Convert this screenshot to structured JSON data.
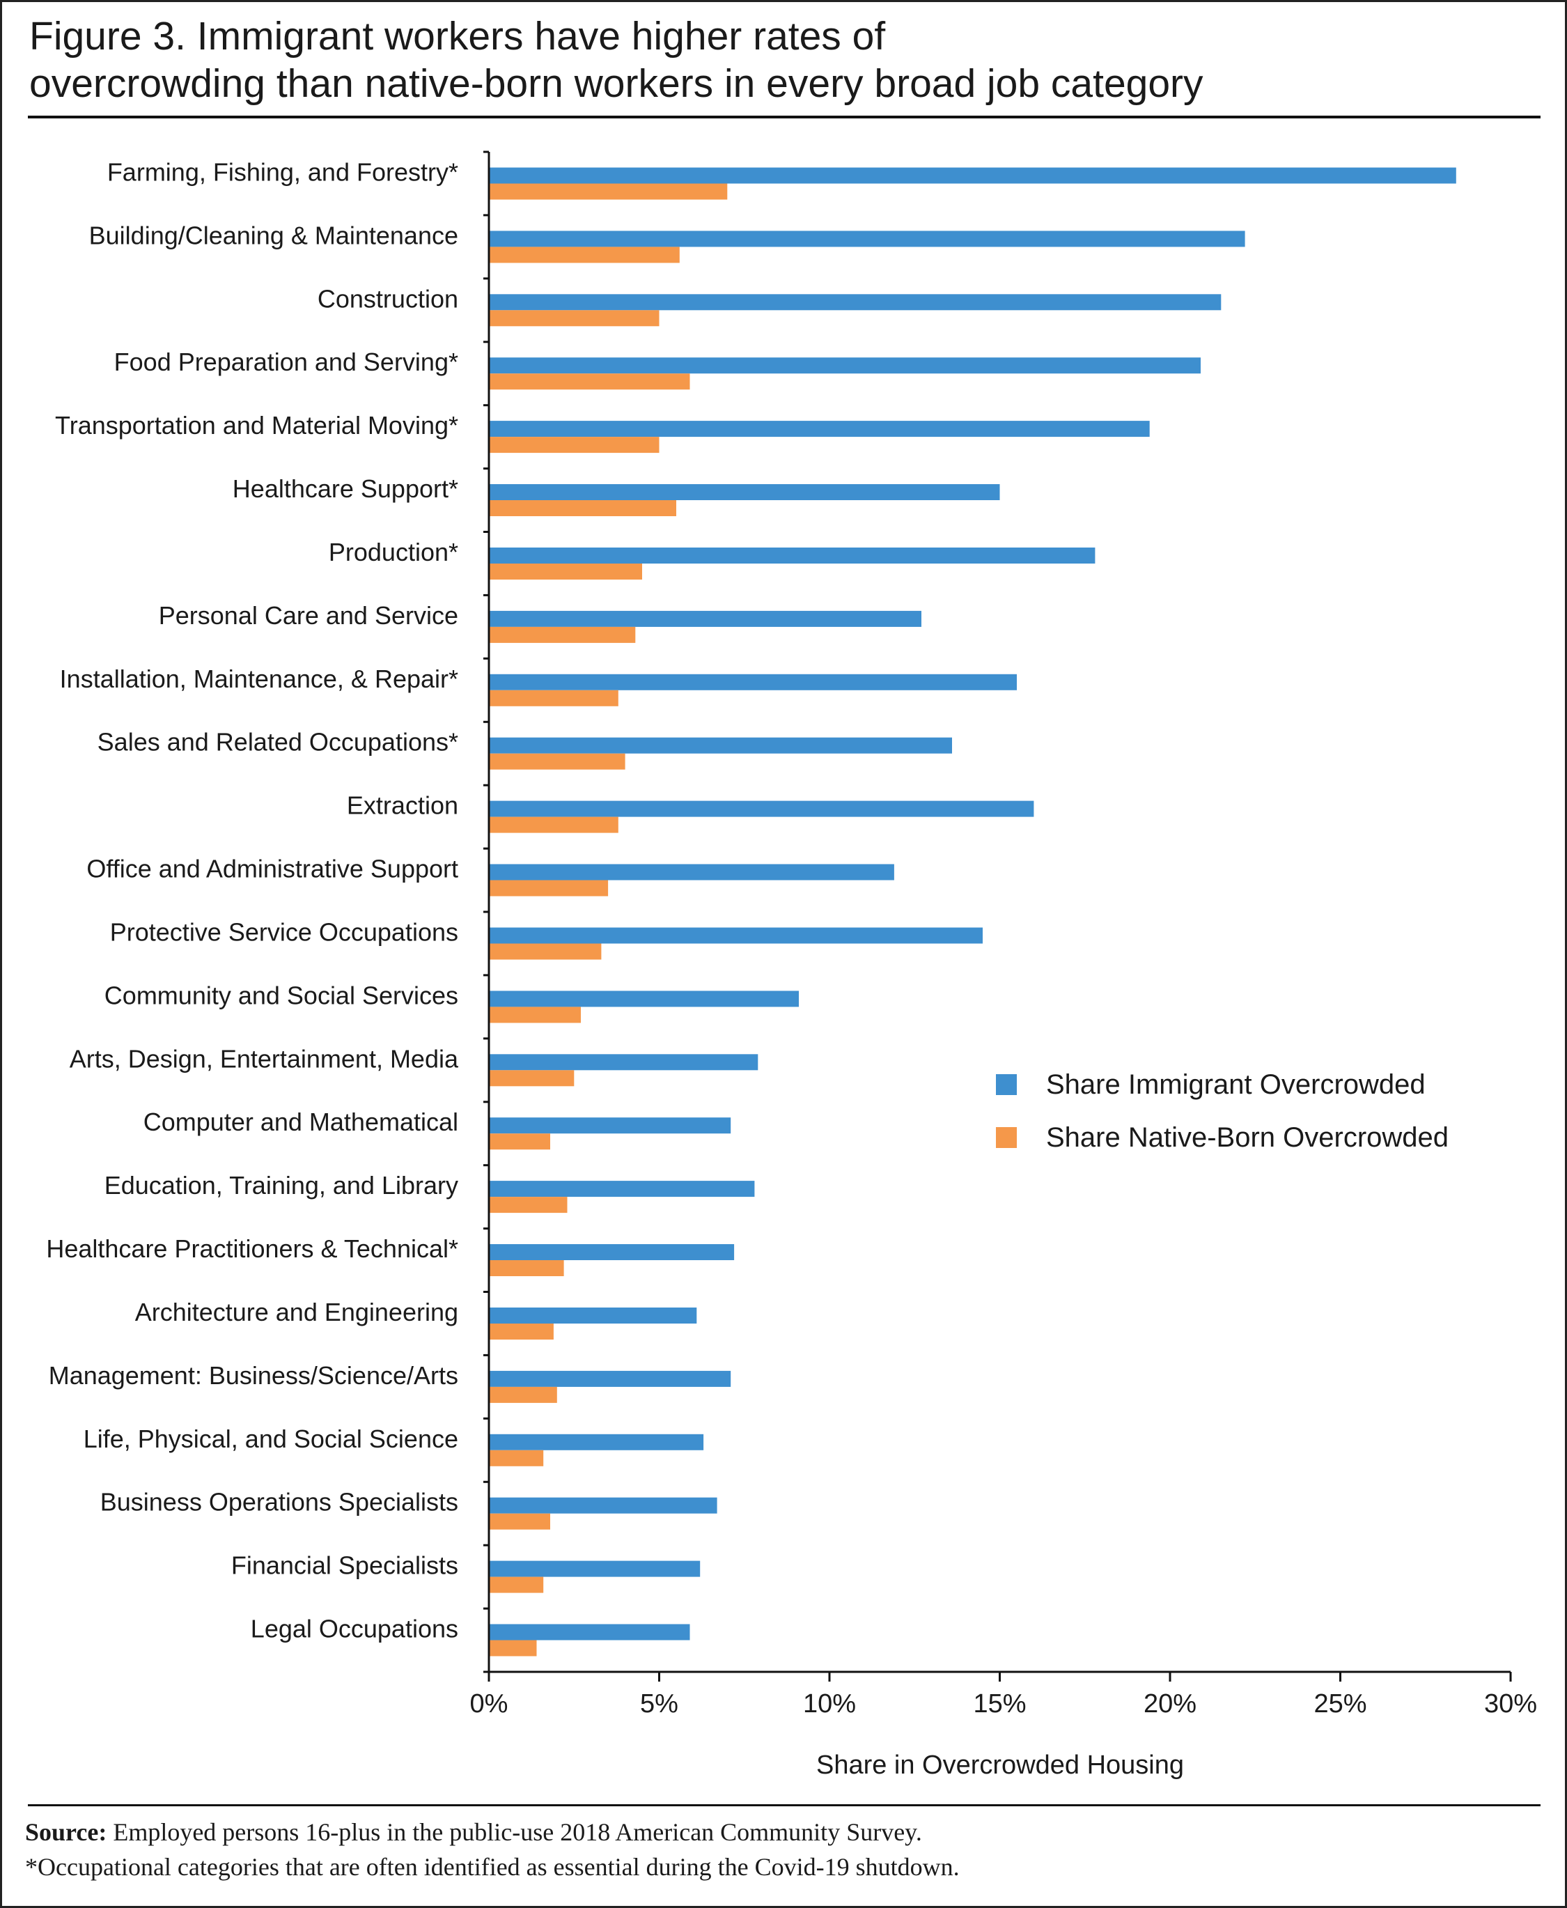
{
  "title_line1": "Figure 3. Immigrant workers have higher rates of",
  "title_line2": "overcrowding than native-born workers in every broad job category",
  "notes": {
    "source_label": "Source:",
    "source_text": "Employed persons 16-plus in the public-use 2018 American Community Survey.",
    "footnote": "*Occupational categories that are often identified as essential during the Covid-19 shutdown."
  },
  "chart_data": {
    "type": "bar",
    "orientation": "horizontal",
    "title": "Figure 3. Immigrant workers have higher rates of overcrowding than native-born workers in every broad job category",
    "xlabel": "Share in Overcrowded Housing",
    "ylabel": "",
    "xlim": [
      0,
      30
    ],
    "x_ticks": [
      0,
      5,
      10,
      15,
      20,
      25,
      30
    ],
    "x_tick_labels": [
      "0%",
      "5%",
      "10%",
      "15%",
      "20%",
      "25%",
      "30%"
    ],
    "grid": false,
    "legend_position": "center-right",
    "categories": [
      "Farming, Fishing, and Forestry*",
      "Building/Cleaning & Maintenance",
      "Construction",
      "Food Preparation and Serving*",
      "Transportation and Material Moving*",
      "Healthcare Support*",
      "Production*",
      "Personal Care and Service",
      "Installation, Maintenance, & Repair*",
      "Sales and Related Occupations*",
      "Extraction",
      "Office and Administrative Support",
      "Protective Service Occupations",
      "Community and Social Services",
      "Arts, Design, Entertainment, Media",
      "Computer and Mathematical",
      "Education, Training, and Library",
      "Healthcare Practitioners & Technical*",
      "Architecture and Engineering",
      "Management: Business/Science/Arts",
      "Life, Physical, and Social Science",
      "Business Operations Specialists",
      "Financial Specialists",
      "Legal Occupations"
    ],
    "series": [
      {
        "name": "Share Immigrant Overcrowded",
        "color": "#3e8fcf",
        "values": [
          28.4,
          22.2,
          21.5,
          20.9,
          19.4,
          15.0,
          17.8,
          12.7,
          15.5,
          13.6,
          16.0,
          11.9,
          14.5,
          9.1,
          7.9,
          7.1,
          7.8,
          7.2,
          6.1,
          7.1,
          6.3,
          6.7,
          6.2,
          5.9
        ]
      },
      {
        "name": "Share Native-Born Overcrowded",
        "color": "#f5984a",
        "values": [
          7.0,
          5.6,
          5.0,
          5.9,
          5.0,
          5.5,
          4.5,
          4.3,
          3.8,
          4.0,
          3.8,
          3.5,
          3.3,
          2.7,
          2.5,
          1.8,
          2.3,
          2.2,
          1.9,
          2.0,
          1.6,
          1.8,
          1.6,
          1.4
        ]
      }
    ]
  }
}
